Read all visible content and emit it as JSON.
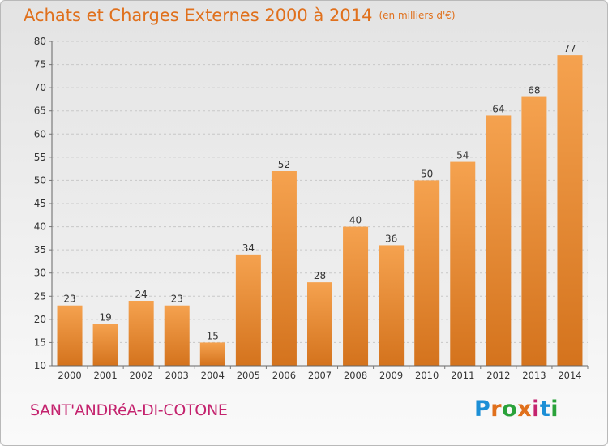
{
  "header": {
    "title": "Achats et Charges Externes 2000 à 2014",
    "unit": "(en milliers d'€)"
  },
  "footer": {
    "commune": "SANT'ANDRéA-DI-COTONE",
    "brand": "Proxiti"
  },
  "colors": {
    "title": "#e0701c",
    "commune": "#c4236e",
    "bar_top": "#f5a24f",
    "bar_bottom": "#d4731d",
    "brand": [
      "#1c8fd6",
      "#e0701c",
      "#2aa23a",
      "#e0701c",
      "#c4236e",
      "#1c8fd6",
      "#2aa23a"
    ]
  },
  "chart_data": {
    "type": "bar",
    "title": "Achats et Charges Externes 2000 à 2014",
    "subtitle": "(en milliers d'€)",
    "categories": [
      "2000",
      "2001",
      "2002",
      "2003",
      "2004",
      "2005",
      "2006",
      "2007",
      "2008",
      "2009",
      "2010",
      "2011",
      "2012",
      "2013",
      "2014"
    ],
    "values": [
      23,
      19,
      24,
      23,
      15,
      34,
      52,
      28,
      40,
      36,
      50,
      54,
      64,
      68,
      77
    ],
    "ylim": [
      10,
      80
    ],
    "yticks": [
      10,
      15,
      20,
      25,
      30,
      35,
      40,
      45,
      50,
      55,
      60,
      65,
      70,
      75,
      80
    ],
    "grid": true,
    "data_labels": true
  }
}
